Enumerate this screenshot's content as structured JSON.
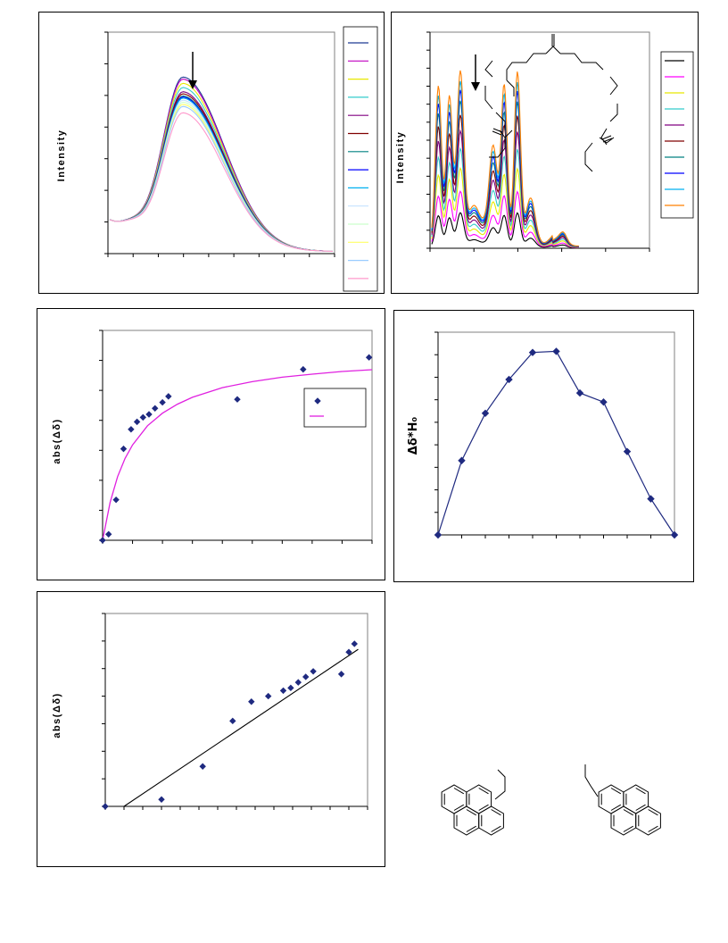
{
  "panels": {
    "fluor1": {
      "ylabel": "Intensity",
      "series_colors": [
        "#1f3a93",
        "#c000c0",
        "#e8e800",
        "#33cccc",
        "#800080",
        "#800000",
        "#008080",
        "#0000ff",
        "#00b0f0",
        "#c6e2ff",
        "#ccffcc",
        "#ffff66",
        "#99ccff",
        "#ff99cc"
      ]
    },
    "fluor2": {
      "ylabel": "Intensity",
      "series_colors": [
        "#000000",
        "#ff00ff",
        "#e8e800",
        "#33cccc",
        "#800080",
        "#800000",
        "#008080",
        "#0000ff",
        "#00b0f0",
        "#ff8000"
      ]
    },
    "binding": {
      "ylabel": "abs(Δδ)"
    },
    "job": {
      "ylabel": "Δδ*H₀"
    },
    "linear": {
      "ylabel": "abs(Δδ)"
    }
  },
  "chart_data": [
    {
      "type": "line",
      "id": "fluorescence-spectra-1",
      "title": "",
      "xlabel": "",
      "ylabel": "Intensity",
      "legend": "right",
      "annotation": "down-arrow (decreasing intensity)",
      "series_count": 14
    },
    {
      "type": "line",
      "id": "fluorescence-spectra-2",
      "title": "",
      "xlabel": "",
      "ylabel": "Intensity",
      "legend": "top-right",
      "annotation": "down-arrow (decreasing intensity)",
      "series_count": 10
    },
    {
      "type": "scatter",
      "id": "binding-isotherm",
      "xlabel": "",
      "ylabel": "abs(Δδ)",
      "xlim": [
        0,
        9
      ],
      "ylim": [
        0,
        7
      ],
      "legend": "right",
      "series": [
        {
          "name": "",
          "marker": "diamond",
          "color": "#1f2a80",
          "x": [
            0,
            0.2,
            0.45,
            0.7,
            0.95,
            1.15,
            1.35,
            1.55,
            1.75,
            2.0,
            2.2,
            4.5,
            6.7,
            8.9
          ],
          "y": [
            0,
            0.2,
            1.35,
            3.05,
            3.7,
            3.95,
            4.1,
            4.2,
            4.4,
            4.6,
            4.8,
            4.7,
            5.7,
            6.1
          ]
        },
        {
          "name": "",
          "type": "fit",
          "color": "#e020e0",
          "x": [
            0,
            0.25,
            0.5,
            0.75,
            1,
            1.5,
            2,
            2.5,
            3,
            4,
            5,
            6,
            7,
            8,
            9
          ],
          "y": [
            0,
            1.26,
            2.12,
            2.73,
            3.18,
            3.82,
            4.24,
            4.54,
            4.77,
            5.09,
            5.29,
            5.44,
            5.54,
            5.63,
            5.69
          ]
        }
      ]
    },
    {
      "type": "line",
      "id": "job-plot",
      "xlabel": "",
      "ylabel": "Δδ*H₀",
      "xlim": [
        0,
        1
      ],
      "ylim": [
        0,
        9
      ],
      "series": [
        {
          "name": "",
          "marker": "diamond",
          "color": "#1f2a80",
          "x": [
            0,
            0.1,
            0.2,
            0.3,
            0.4,
            0.5,
            0.6,
            0.7,
            0.8,
            0.9,
            1.0
          ],
          "y": [
            0,
            3.3,
            5.4,
            6.9,
            8.1,
            8.15,
            6.3,
            5.9,
            3.7,
            1.6,
            0
          ]
        }
      ]
    },
    {
      "type": "scatter",
      "id": "linear-fit",
      "xlabel": "",
      "ylabel": "abs(Δδ)",
      "xlim": [
        0,
        14
      ],
      "ylim": [
        0,
        7
      ],
      "series": [
        {
          "name": "",
          "marker": "diamond",
          "color": "#1f2a80",
          "x": [
            0,
            3.0,
            5.2,
            6.8,
            7.8,
            8.7,
            9.5,
            9.9,
            10.3,
            10.7,
            11.1,
            12.6,
            13.0,
            13.3
          ],
          "y": [
            0,
            0.25,
            1.45,
            3.1,
            3.8,
            4.0,
            4.2,
            4.3,
            4.5,
            4.7,
            4.9,
            4.8,
            5.6,
            5.9
          ]
        },
        {
          "name": "",
          "type": "trendline",
          "color": "#000000",
          "x": [
            1.0,
            13.5
          ],
          "y": [
            0,
            5.7
          ]
        }
      ]
    }
  ],
  "molecule": {
    "description_icon": "bis-pyrene-macrocycle-structure-icon"
  }
}
